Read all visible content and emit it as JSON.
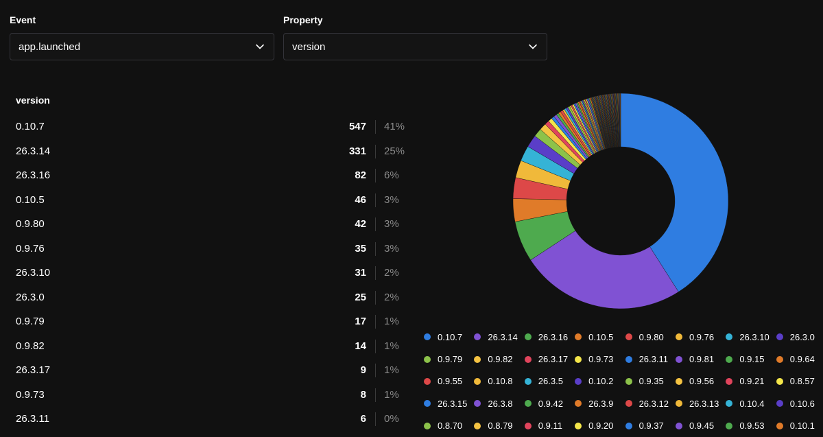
{
  "filters": {
    "event": {
      "label": "Event",
      "value": "app.launched"
    },
    "property": {
      "label": "Property",
      "value": "version"
    }
  },
  "table": {
    "header": "version",
    "rows": [
      {
        "label": "0.10.7",
        "count": "547",
        "pct": "41%"
      },
      {
        "label": "26.3.14",
        "count": "331",
        "pct": "25%"
      },
      {
        "label": "26.3.16",
        "count": "82",
        "pct": "6%"
      },
      {
        "label": "0.10.5",
        "count": "46",
        "pct": "3%"
      },
      {
        "label": "0.9.80",
        "count": "42",
        "pct": "3%"
      },
      {
        "label": "0.9.76",
        "count": "35",
        "pct": "3%"
      },
      {
        "label": "26.3.10",
        "count": "31",
        "pct": "2%"
      },
      {
        "label": "26.3.0",
        "count": "25",
        "pct": "2%"
      },
      {
        "label": "0.9.79",
        "count": "17",
        "pct": "1%"
      },
      {
        "label": "0.9.82",
        "count": "14",
        "pct": "1%"
      },
      {
        "label": "26.3.17",
        "count": "9",
        "pct": "1%"
      },
      {
        "label": "0.9.73",
        "count": "8",
        "pct": "1%"
      },
      {
        "label": "26.3.11",
        "count": "6",
        "pct": "0%"
      }
    ]
  },
  "chart_data": {
    "type": "pie",
    "style": "donut",
    "title": "",
    "categories": [
      "0.10.7",
      "26.3.14",
      "26.3.16",
      "0.10.5",
      "0.9.80",
      "0.9.76",
      "26.3.10",
      "26.3.0",
      "0.9.79",
      "0.9.82",
      "26.3.17",
      "0.9.73",
      "26.3.11",
      "0.9.81",
      "0.9.15",
      "0.9.64",
      "0.9.55",
      "0.10.8",
      "26.3.5",
      "0.10.2",
      "0.9.35",
      "0.9.56",
      "0.9.21",
      "0.8.57",
      "26.3.15",
      "26.3.8",
      "0.9.42",
      "26.3.9",
      "26.3.12",
      "26.3.13",
      "0.10.4",
      "0.10.6",
      "0.8.70",
      "0.8.79",
      "0.9.11",
      "0.9.20",
      "0.9.37",
      "0.9.45",
      "0.9.53",
      "0.10.1"
    ],
    "values": [
      547,
      331,
      82,
      46,
      42,
      35,
      31,
      25,
      17,
      14,
      9,
      8,
      6,
      6,
      5,
      5,
      5,
      4,
      4,
      4,
      4,
      3,
      3,
      3,
      3,
      3,
      3,
      3,
      2,
      2,
      2,
      2,
      2,
      2,
      2,
      2,
      2,
      2,
      2,
      2
    ],
    "tail_slices": 60,
    "tail_value": 1,
    "legend_position": "bottom"
  },
  "palette": [
    "#2f7de1",
    "#8052d3",
    "#4eaa4e",
    "#e07b29",
    "#dd4848",
    "#f0b93a",
    "#35b3d6",
    "#5a3ec8",
    "#8cc24a",
    "#f5c342",
    "#e0445c",
    "#f4e64a"
  ]
}
